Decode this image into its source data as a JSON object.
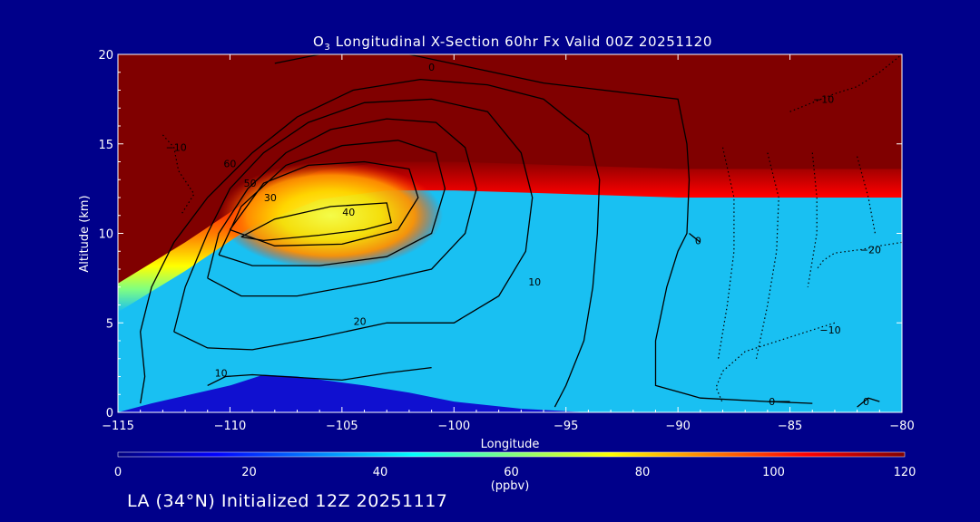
{
  "chart_data": {
    "type": "heatmap",
    "title": {
      "main": "O",
      "sub": "3",
      "rest": " Longitudinal X-Section 60hr  Fx Valid 00Z 20251120"
    },
    "xlabel": "Longitude",
    "ylabel": "Altitude (km)",
    "xlim": [
      -115,
      -80
    ],
    "ylim": [
      0,
      20
    ],
    "x_ticks": [
      -115,
      -110,
      -105,
      -100,
      -95,
      -90,
      -85,
      -80
    ],
    "x_tick_labels": [
      "−115",
      "−110",
      "−105",
      "−100",
      "−95",
      "−90",
      "−85",
      "−80"
    ],
    "y_ticks": [
      0,
      5,
      10,
      15,
      20
    ],
    "y_tick_labels": [
      "0",
      "5",
      "10",
      "15",
      "20"
    ],
    "colorbar": {
      "label": "(ppbv)",
      "min": 0,
      "max": 120,
      "ticks": [
        0,
        20,
        40,
        60,
        80,
        100,
        120
      ],
      "tick_labels": [
        "0",
        "20",
        "40",
        "60",
        "80",
        "100",
        "120"
      ],
      "colors": [
        "#00007f",
        "#0000ff",
        "#0080ff",
        "#00ffff",
        "#80ff80",
        "#ffff00",
        "#ff8000",
        "#ff0000",
        "#800000"
      ]
    },
    "field": {
      "tropopause_km": [
        [
          -115,
          7.2
        ],
        [
          -112,
          9.5
        ],
        [
          -109,
          12.0
        ],
        [
          -106,
          13.5
        ],
        [
          -103,
          14.0
        ],
        [
          -100,
          14.0
        ],
        [
          -95,
          13.8
        ],
        [
          -90,
          13.6
        ],
        [
          -85,
          13.6
        ],
        [
          -80,
          13.6
        ]
      ],
      "max_color": "#800000",
      "low_color": "#19c0f2",
      "terrain_km": [
        [
          -115,
          0
        ],
        [
          -113.5,
          0.5
        ],
        [
          -110,
          1.5
        ],
        [
          -108.5,
          2.1
        ],
        [
          -107,
          2.0
        ],
        [
          -104,
          1.5
        ],
        [
          -102,
          1.1
        ],
        [
          -100,
          0.6
        ],
        [
          -97,
          0.2
        ],
        [
          -94,
          0
        ],
        [
          -80,
          0
        ]
      ]
    },
    "contours": [
      {
        "value": 0,
        "label": "0",
        "style": "solid",
        "points": [
          [
            -108,
            19.5
          ],
          [
            -106,
            20
          ],
          [
            -102,
            20
          ],
          [
            -99,
            19.2
          ],
          [
            -96,
            18.4
          ],
          [
            -92,
            17.8
          ],
          [
            -90,
            17.5
          ],
          [
            -89.6,
            15
          ],
          [
            -89.5,
            13
          ],
          [
            -89.6,
            10
          ],
          [
            -90,
            9
          ],
          [
            -90.5,
            7
          ],
          [
            -91,
            4
          ],
          [
            -91,
            1.5
          ],
          [
            -89,
            0.8
          ],
          [
            -86,
            0.6
          ],
          [
            -84,
            0.5
          ]
        ],
        "label_at": [
          -101,
          19.3
        ]
      },
      {
        "value": 0,
        "label": "0",
        "style": "solid",
        "points": [
          [
            -89.5,
            10
          ],
          [
            -89,
            9.5
          ]
        ],
        "label_at": [
          -89.1,
          9.6
        ]
      },
      {
        "value": 0,
        "label": "0",
        "style": "solid",
        "points": [
          [
            -82,
            0.3
          ],
          [
            -81.5,
            0.8
          ],
          [
            -81,
            0.6
          ]
        ],
        "label_at": [
          -81.6,
          0.6
        ]
      },
      {
        "value": 0,
        "label": "0",
        "style": "solid",
        "points": [
          [
            -86,
            0.6
          ],
          [
            -85,
            0.6
          ]
        ],
        "label_at": [
          -85.8,
          0.6
        ]
      },
      {
        "value": 10,
        "label": "10",
        "style": "solid",
        "points": [
          [
            -114,
            0.5
          ],
          [
            -113.8,
            2
          ],
          [
            -114,
            4.5
          ],
          [
            -113.5,
            7
          ],
          [
            -112.5,
            9.5
          ],
          [
            -111,
            12
          ],
          [
            -109,
            14.5
          ],
          [
            -107,
            16.5
          ],
          [
            -104.5,
            18
          ],
          [
            -101.5,
            18.6
          ],
          [
            -98.5,
            18.3
          ],
          [
            -96,
            17.5
          ],
          [
            -94,
            15.5
          ],
          [
            -93.5,
            13
          ],
          [
            -93.6,
            10
          ],
          [
            -93.8,
            7
          ],
          [
            -94.2,
            4
          ],
          [
            -95,
            1.5
          ],
          [
            -95.5,
            0.3
          ]
        ],
        "label_at": [
          -96.4,
          7.3
        ]
      },
      {
        "value": 10,
        "label": "10",
        "style": "solid",
        "points": [
          [
            -111,
            1.5
          ],
          [
            -110.2,
            2.0
          ],
          [
            -109,
            2.1
          ],
          [
            -105,
            1.8
          ],
          [
            -103,
            2.2
          ],
          [
            -101,
            2.5
          ]
        ],
        "label_at": [
          -110.4,
          2.2
        ]
      },
      {
        "value": 20,
        "label": "20",
        "style": "solid",
        "points": [
          [
            -112.5,
            4.5
          ],
          [
            -112,
            7
          ],
          [
            -111,
            10
          ],
          [
            -110,
            12.5
          ],
          [
            -108.5,
            14.5
          ],
          [
            -106.5,
            16.2
          ],
          [
            -104,
            17.3
          ],
          [
            -101,
            17.5
          ],
          [
            -98.5,
            16.8
          ],
          [
            -97,
            14.5
          ],
          [
            -96.5,
            12
          ],
          [
            -96.8,
            9
          ],
          [
            -98,
            6.5
          ],
          [
            -100,
            5
          ],
          [
            -103,
            5
          ],
          [
            -106,
            4.2
          ],
          [
            -109,
            3.5
          ],
          [
            -111,
            3.6
          ],
          [
            -112.5,
            4.5
          ]
        ],
        "label_at": [
          -104.2,
          5.1
        ]
      },
      {
        "value": 30,
        "label": "30",
        "style": "solid",
        "points": [
          [
            -111,
            7.5
          ],
          [
            -110.5,
            10
          ],
          [
            -109.2,
            12.5
          ],
          [
            -107.5,
            14.5
          ],
          [
            -105.5,
            15.8
          ],
          [
            -103,
            16.4
          ],
          [
            -100.8,
            16.2
          ],
          [
            -99.5,
            14.8
          ],
          [
            -99,
            12.5
          ],
          [
            -99.5,
            10
          ],
          [
            -101,
            8
          ],
          [
            -103.5,
            7.3
          ],
          [
            -107,
            6.5
          ],
          [
            -109.5,
            6.5
          ],
          [
            -111,
            7.5
          ]
        ],
        "label_at": [
          -108.2,
          12.0
        ]
      },
      {
        "value": 40,
        "label": "40",
        "style": "solid",
        "points": [
          [
            -109.5,
            9.8
          ],
          [
            -108,
            10.8
          ],
          [
            -105.5,
            11.5
          ],
          [
            -103,
            11.7
          ],
          [
            -102.8,
            10.6
          ],
          [
            -104,
            10.2
          ],
          [
            -106,
            9.9
          ],
          [
            -108.5,
            9.6
          ],
          [
            -109.5,
            9.8
          ]
        ],
        "label_at": [
          -104.7,
          11.2
        ]
      },
      {
        "value": 50,
        "label": "50",
        "style": "solid",
        "points": [
          [
            -110.5,
            8.8
          ],
          [
            -109.5,
            11.5
          ],
          [
            -107.5,
            13.8
          ],
          [
            -105,
            14.9
          ],
          [
            -102.5,
            15.2
          ],
          [
            -100.8,
            14.5
          ],
          [
            -100.4,
            12.5
          ],
          [
            -101,
            10
          ],
          [
            -103,
            8.7
          ],
          [
            -106,
            8.2
          ],
          [
            -109,
            8.2
          ],
          [
            -110.5,
            8.8
          ]
        ],
        "label_at": [
          -109.1,
          12.8
        ]
      },
      {
        "value": 60,
        "label": "60",
        "style": "solid",
        "points": [
          [
            -110,
            10.2
          ],
          [
            -108.5,
            12.8
          ],
          [
            -106.5,
            13.8
          ],
          [
            -104,
            14.0
          ],
          [
            -102,
            13.6
          ],
          [
            -101.6,
            12
          ],
          [
            -102.5,
            10.2
          ],
          [
            -105,
            9.4
          ],
          [
            -108,
            9.3
          ],
          [
            -110,
            10.2
          ]
        ],
        "label_at": [
          -110.0,
          13.9
        ]
      },
      {
        "value": -10,
        "label": "−10",
        "style": "dotted",
        "points": [
          [
            -113,
            15.5
          ],
          [
            -112.5,
            14.8
          ],
          [
            -112.3,
            13.5
          ],
          [
            -111.6,
            12.2
          ],
          [
            -112.2,
            11
          ]
        ],
        "label_at": [
          -112.4,
          14.8
        ]
      },
      {
        "value": -10,
        "label": "−10",
        "style": "dotted",
        "points": [
          [
            -85,
            16.8
          ],
          [
            -83,
            17.8
          ],
          [
            -82,
            18.2
          ],
          [
            -81,
            19
          ],
          [
            -80.5,
            19.5
          ],
          [
            -80,
            20
          ]
        ],
        "label_at": [
          -83.5,
          17.5
        ]
      },
      {
        "value": -10,
        "label": "−10",
        "style": "dotted",
        "points": [
          [
            -83,
            5
          ],
          [
            -84,
            4.6
          ],
          [
            -85.5,
            4
          ],
          [
            -87,
            3.4
          ],
          [
            -88,
            2.3
          ],
          [
            -88.3,
            1.4
          ],
          [
            -88,
            0.5
          ]
        ],
        "label_at": [
          -83.2,
          4.6
        ]
      },
      {
        "value": -20,
        "label": "−20",
        "style": "dotted",
        "points": [
          [
            -80,
            9.5
          ],
          [
            -81,
            9.3
          ],
          [
            -81.8,
            9.1
          ],
          [
            -83,
            8.9
          ],
          [
            -83.5,
            8.5
          ],
          [
            -83.8,
            8
          ]
        ],
        "label_at": [
          -81.4,
          9.1
        ]
      },
      {
        "value": -20,
        "label": "",
        "style": "dotted",
        "points": [
          [
            -88,
            14.8
          ],
          [
            -87.5,
            12
          ],
          [
            -87.5,
            9
          ],
          [
            -87.8,
            6
          ],
          [
            -88.2,
            3
          ]
        ],
        "label_at": null
      },
      {
        "value": -20,
        "label": "",
        "style": "dotted",
        "points": [
          [
            -86,
            14.5
          ],
          [
            -85.5,
            12
          ],
          [
            -85.6,
            9
          ],
          [
            -86,
            6
          ],
          [
            -86.5,
            3
          ]
        ],
        "label_at": null
      },
      {
        "value": -20,
        "label": "",
        "style": "dotted",
        "points": [
          [
            -84,
            14.5
          ],
          [
            -83.8,
            12
          ],
          [
            -83.8,
            10
          ],
          [
            -84.2,
            7
          ]
        ],
        "label_at": null
      },
      {
        "value": -10,
        "label": "",
        "style": "dotted",
        "points": [
          [
            -82,
            14.3
          ],
          [
            -81.5,
            12
          ],
          [
            -81.2,
            10
          ]
        ],
        "label_at": null
      }
    ]
  },
  "footer": "LA (34°N) Initialized 12Z 20251117"
}
